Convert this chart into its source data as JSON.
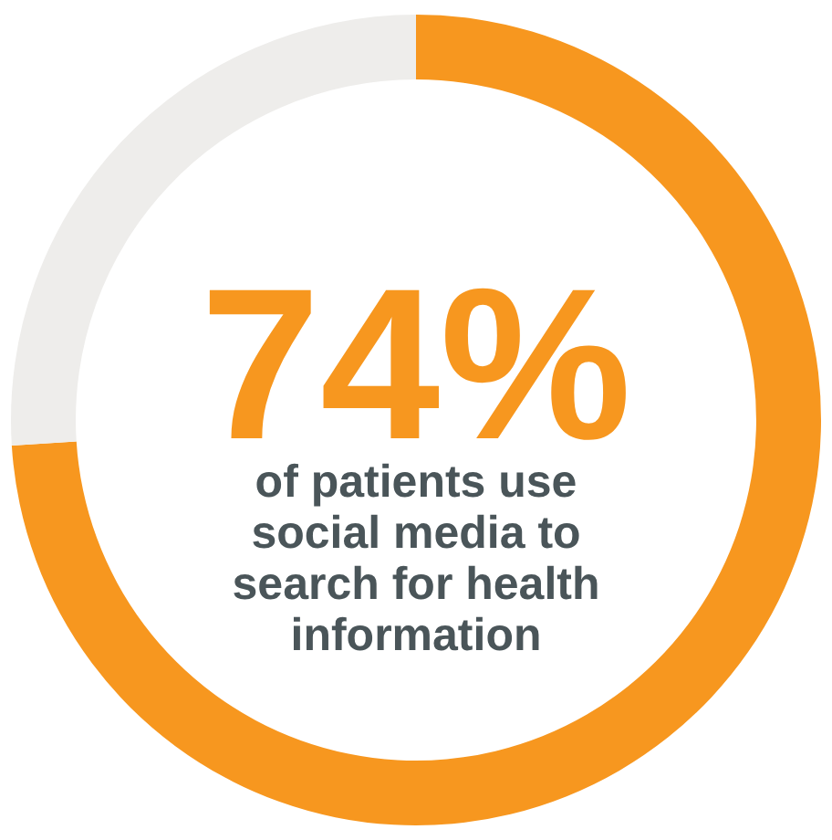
{
  "chart_data": {
    "type": "donut",
    "categories": [
      null,
      null
    ],
    "values": [
      74,
      26
    ],
    "colors": [
      "#f7971f",
      "#eeedeb"
    ],
    "value_labels": [
      "74%",
      null
    ],
    "annotations": [
      "of patients use social media to search for health information"
    ],
    "legend": false
  }
}
